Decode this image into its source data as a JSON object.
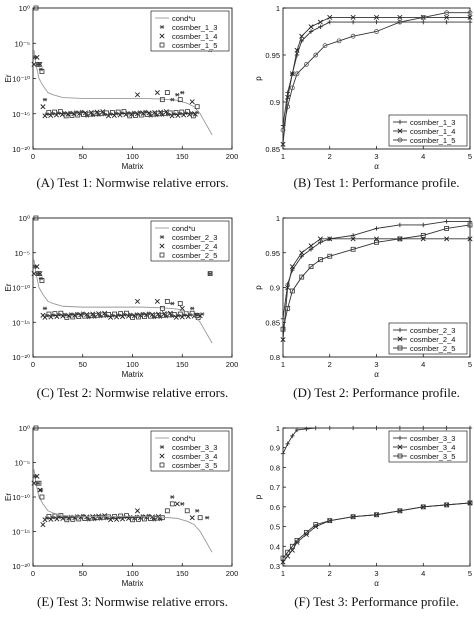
{
  "chart_data": [
    {
      "id": "A",
      "type": "scatter",
      "yscale": "log",
      "caption": "(A) Test 1: Normwise relative errors.",
      "xlabel": "Matrix",
      "ylabel": "Er",
      "xlim": [
        0,
        200
      ],
      "ylim": [
        1e-20,
        1
      ],
      "xticks": [
        "0",
        "50",
        "100",
        "150",
        "200"
      ],
      "yticks": [
        "10⁻²⁰",
        "10⁻¹⁵",
        "10⁻¹⁰",
        "10⁻⁵",
        "10⁰"
      ],
      "legend": {
        "position": "top-right",
        "line_label": "cond*u",
        "entries": [
          "cosmber_1_3",
          "cosmber_1_4",
          "cosmber_1_5"
        ]
      },
      "series": [
        {
          "name": "cond*u",
          "marker": "line",
          "x": [
            1,
            3,
            6,
            10,
            15,
            20,
            30,
            50,
            80,
            110,
            130,
            145,
            155,
            162,
            168,
            172,
            176,
            180
          ],
          "y": [
            1e-06,
            1e-08,
            1e-10,
            1e-11,
            1e-12,
            5e-13,
            2e-13,
            1.5e-13,
            1.5e-13,
            1.5e-13,
            1.2e-13,
            8e-14,
            3e-14,
            1e-14,
            1e-15,
            1e-16,
            1e-17,
            1e-18
          ]
        },
        {
          "name": "cosmber_1_3",
          "marker": "star",
          "x": [
            2,
            5,
            8,
            12,
            140,
            145,
            150,
            178
          ],
          "y": [
            1e-07,
            1e-08,
            2e-09,
            1e-13,
            1e-13,
            5e-13,
            1e-12,
            1e-06
          ]
        },
        {
          "name": "cosmber_1_4",
          "marker": "x",
          "x": [
            1,
            4,
            7,
            10,
            105,
            125,
            160,
            178
          ],
          "y": [
            1e-08,
            1e-07,
            1e-08,
            1e-14,
            5e-13,
            1e-12,
            5e-14,
            1e-05
          ]
        },
        {
          "name": "cosmber_1_5",
          "marker": "square",
          "x": [
            3,
            6,
            9,
            130,
            135,
            148,
            165
          ],
          "y": [
            1,
            1e-08,
            1e-09,
            1e-13,
            1e-12,
            1e-13,
            1e-14
          ]
        }
      ],
      "band": {
        "x_from": 12,
        "x_to": 165,
        "y": 1e-15,
        "count": 80
      }
    },
    {
      "id": "B",
      "type": "line",
      "caption": "(B) Test 1: Performance profile.",
      "xlabel": "α",
      "ylabel": "p",
      "xlim": [
        1,
        5
      ],
      "ylim": [
        0.85,
        1.0
      ],
      "xticks": [
        "1",
        "2",
        "3",
        "4",
        "5"
      ],
      "yticks": [
        "0.85",
        "0.9",
        "0.95",
        "1"
      ],
      "legend": {
        "position": "bottom-right",
        "entries": [
          "cosmber_1_3",
          "cosmber_1_4",
          "cosmber_1_5"
        ]
      },
      "series": [
        {
          "name": "cosmber_1_3",
          "marker": "plus",
          "x": [
            1,
            1.1,
            1.2,
            1.3,
            1.4,
            1.6,
            1.8,
            2.0,
            2.5,
            3.0,
            3.5,
            4.0,
            4.5,
            5.0
          ],
          "y": [
            0.875,
            0.91,
            0.93,
            0.95,
            0.965,
            0.975,
            0.98,
            0.985,
            0.985,
            0.985,
            0.985,
            0.985,
            0.985,
            0.985
          ]
        },
        {
          "name": "cosmber_1_4",
          "marker": "x",
          "x": [
            1,
            1.1,
            1.2,
            1.3,
            1.4,
            1.6,
            1.8,
            2.0,
            2.5,
            3.0,
            3.5,
            4.0,
            4.5,
            5.0
          ],
          "y": [
            0.855,
            0.905,
            0.93,
            0.955,
            0.97,
            0.98,
            0.985,
            0.99,
            0.99,
            0.99,
            0.99,
            0.99,
            0.99,
            0.99
          ]
        },
        {
          "name": "cosmber_1_5",
          "marker": "circle",
          "x": [
            1,
            1.1,
            1.2,
            1.3,
            1.5,
            1.7,
            1.9,
            2.2,
            2.5,
            3.0,
            3.5,
            4.0,
            4.5,
            5.0
          ],
          "y": [
            0.87,
            0.895,
            0.915,
            0.93,
            0.94,
            0.95,
            0.96,
            0.965,
            0.97,
            0.975,
            0.985,
            0.99,
            0.995,
            0.995
          ]
        }
      ]
    },
    {
      "id": "C",
      "type": "scatter",
      "yscale": "log",
      "caption": "(C) Test 2: Normwise relative errors.",
      "xlabel": "Matrix",
      "ylabel": "Er",
      "xlim": [
        0,
        200
      ],
      "ylim": [
        1e-20,
        1
      ],
      "xticks": [
        "0",
        "50",
        "100",
        "150",
        "200"
      ],
      "yticks": [
        "10⁻²⁰",
        "10⁻¹⁵",
        "10⁻¹⁰",
        "10⁻⁵",
        "10⁰"
      ],
      "legend": {
        "position": "top-right",
        "line_label": "cond*u",
        "entries": [
          "cosmber_2_3",
          "cosmber_2_4",
          "cosmber_2_5"
        ]
      },
      "series": [
        {
          "name": "cond*u",
          "marker": "line",
          "x": [
            1,
            3,
            6,
            10,
            15,
            20,
            30,
            50,
            80,
            110,
            130,
            145,
            155,
            162,
            168,
            172,
            176,
            180
          ],
          "y": [
            1e-06,
            1e-08,
            1e-10,
            1e-11,
            1e-12,
            5e-13,
            2e-13,
            1.5e-13,
            1.5e-13,
            1.5e-13,
            1.2e-13,
            8e-14,
            3e-14,
            1e-14,
            1e-15,
            1e-16,
            1e-17,
            1e-18
          ]
        },
        {
          "name": "cosmber_2_3",
          "marker": "star",
          "x": [
            2,
            5,
            8,
            12,
            140,
            160,
            178
          ],
          "y": [
            1e-07,
            1e-08,
            2e-09,
            1e-13,
            5e-13,
            1e-13,
            1e-08
          ]
        },
        {
          "name": "cosmber_2_4",
          "marker": "x",
          "x": [
            1,
            4,
            7,
            10,
            105,
            125,
            150
          ],
          "y": [
            1e-08,
            1e-07,
            1e-08,
            1e-14,
            1e-12,
            1e-12,
            1e-13
          ]
        },
        {
          "name": "cosmber_2_5",
          "marker": "square",
          "x": [
            3,
            6,
            9,
            130,
            135,
            148,
            165,
            178
          ],
          "y": [
            1,
            1e-08,
            1e-09,
            1e-13,
            1e-12,
            5e-13,
            1e-14,
            1e-08
          ]
        }
      ],
      "band": {
        "x_from": 12,
        "x_to": 170,
        "y": 1e-14,
        "count": 80
      }
    },
    {
      "id": "D",
      "type": "line",
      "caption": "(D) Test 2: Performance profile.",
      "xlabel": "α",
      "ylabel": "p",
      "xlim": [
        1,
        5
      ],
      "ylim": [
        0.8,
        1.0
      ],
      "xticks": [
        "1",
        "2",
        "3",
        "4",
        "5"
      ],
      "yticks": [
        "0.8",
        "0.85",
        "0.9",
        "0.95",
        "1"
      ],
      "legend": {
        "position": "bottom-right",
        "entries": [
          "cosmber_2_3",
          "cosmber_2_4",
          "cosmber_2_5"
        ]
      },
      "series": [
        {
          "name": "cosmber_2_3",
          "marker": "plus",
          "x": [
            1,
            1.1,
            1.2,
            1.4,
            1.6,
            1.8,
            2.0,
            2.5,
            3.0,
            3.5,
            4.0,
            4.5,
            5.0
          ],
          "y": [
            0.855,
            0.905,
            0.925,
            0.945,
            0.955,
            0.965,
            0.97,
            0.975,
            0.985,
            0.99,
            0.99,
            0.995,
            0.995
          ]
        },
        {
          "name": "cosmber_2_4",
          "marker": "x",
          "x": [
            1,
            1.1,
            1.2,
            1.4,
            1.6,
            1.8,
            2.0,
            2.5,
            3.0,
            3.5,
            4.0,
            4.5,
            5.0
          ],
          "y": [
            0.825,
            0.9,
            0.93,
            0.95,
            0.96,
            0.97,
            0.97,
            0.97,
            0.97,
            0.97,
            0.97,
            0.97,
            0.97
          ]
        },
        {
          "name": "cosmber_2_5",
          "marker": "square",
          "x": [
            1,
            1.1,
            1.2,
            1.4,
            1.6,
            1.8,
            2.0,
            2.5,
            3.0,
            3.5,
            4.0,
            4.5,
            5.0
          ],
          "y": [
            0.84,
            0.87,
            0.895,
            0.915,
            0.93,
            0.94,
            0.945,
            0.955,
            0.965,
            0.97,
            0.975,
            0.985,
            0.99
          ]
        }
      ]
    },
    {
      "id": "E",
      "type": "scatter",
      "yscale": "log",
      "caption": "(E) Test 3: Normwise relative errors.",
      "xlabel": "Matrix",
      "ylabel": "Er",
      "xlim": [
        0,
        200
      ],
      "ylim": [
        1e-20,
        1
      ],
      "xticks": [
        "0",
        "50",
        "100",
        "150",
        "200"
      ],
      "yticks": [
        "10⁻²⁰",
        "10⁻¹⁵",
        "10⁻¹⁰",
        "10⁻⁵",
        "10⁰"
      ],
      "legend": {
        "position": "top-right",
        "line_label": "cond*u",
        "entries": [
          "cosmber_3_3",
          "cosmber_3_4",
          "cosmber_3_5"
        ]
      },
      "series": [
        {
          "name": "cond*u",
          "marker": "line",
          "x": [
            1,
            3,
            6,
            10,
            15,
            20,
            30,
            50,
            80,
            110,
            130,
            145,
            155,
            162,
            168,
            172,
            176,
            180
          ],
          "y": [
            1e-06,
            1e-08,
            1e-10,
            1e-11,
            1e-12,
            5e-13,
            2e-13,
            1.5e-13,
            1.5e-13,
            1.5e-13,
            1.2e-13,
            8e-14,
            3e-14,
            1e-14,
            1e-15,
            1e-16,
            1e-17,
            1e-18
          ]
        },
        {
          "name": "cosmber_3_3",
          "marker": "star",
          "x": [
            2,
            5,
            8,
            140,
            150,
            165,
            175
          ],
          "y": [
            1e-07,
            1e-08,
            1e-09,
            1e-10,
            1e-11,
            1e-12,
            1e-13
          ]
        },
        {
          "name": "cosmber_3_4",
          "marker": "x",
          "x": [
            1,
            4,
            7,
            10,
            105,
            145,
            160
          ],
          "y": [
            1e-08,
            1e-07,
            1e-09,
            1e-14,
            1e-12,
            1e-11,
            1e-13
          ]
        },
        {
          "name": "cosmber_3_5",
          "marker": "square",
          "x": [
            3,
            6,
            9,
            135,
            140,
            155,
            168
          ],
          "y": [
            1,
            1e-08,
            1e-10,
            1e-12,
            1e-11,
            1e-12,
            1e-13
          ]
        }
      ],
      "band": {
        "x_from": 12,
        "x_to": 130,
        "y": 1e-13,
        "count": 60
      }
    },
    {
      "id": "F",
      "type": "line",
      "caption": "(F) Test 3: Performance profile.",
      "xlabel": "α",
      "ylabel": "p",
      "xlim": [
        1,
        5
      ],
      "ylim": [
        0.3,
        1.0
      ],
      "xticks": [
        "1",
        "2",
        "3",
        "4",
        "5"
      ],
      "yticks": [
        "0.3",
        "0.4",
        "0.5",
        "0.6",
        "0.7",
        "0.8",
        "0.9",
        "1"
      ],
      "legend": {
        "position": "top-right",
        "entries": [
          "cosmber_3_3",
          "cosmber_3_4",
          "cosmber_3_5"
        ]
      },
      "series": [
        {
          "name": "cosmber_3_3",
          "marker": "plus",
          "x": [
            1,
            1.1,
            1.2,
            1.3,
            1.5,
            1.7,
            2.0,
            2.5,
            3.0,
            3.5,
            4.0,
            4.5,
            5.0
          ],
          "y": [
            0.87,
            0.92,
            0.96,
            0.99,
            0.995,
            1,
            1,
            1,
            1,
            1,
            1,
            1,
            1
          ]
        },
        {
          "name": "cosmber_3_4",
          "marker": "x",
          "x": [
            1,
            1.1,
            1.2,
            1.3,
            1.5,
            1.7,
            2.0,
            2.5,
            3.0,
            3.5,
            4.0,
            4.5,
            5.0
          ],
          "y": [
            0.32,
            0.35,
            0.38,
            0.42,
            0.46,
            0.5,
            0.53,
            0.55,
            0.56,
            0.58,
            0.6,
            0.61,
            0.62
          ]
        },
        {
          "name": "cosmber_3_5",
          "marker": "square",
          "x": [
            1,
            1.1,
            1.2,
            1.3,
            1.5,
            1.7,
            2.0,
            2.5,
            3.0,
            3.5,
            4.0,
            4.5,
            5.0
          ],
          "y": [
            0.34,
            0.37,
            0.4,
            0.43,
            0.47,
            0.51,
            0.53,
            0.55,
            0.56,
            0.58,
            0.6,
            0.61,
            0.62
          ]
        }
      ]
    }
  ]
}
